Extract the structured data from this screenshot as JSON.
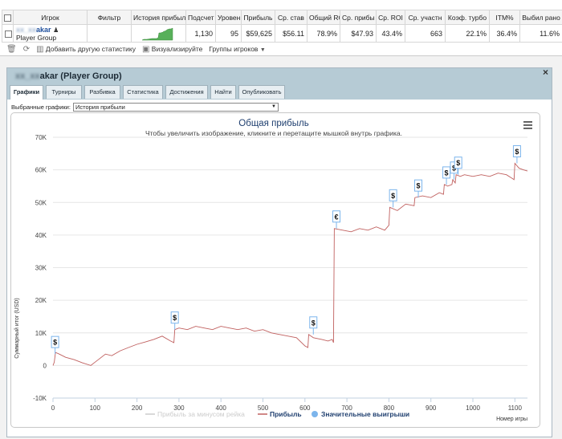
{
  "table": {
    "headers": [
      "Игрок",
      "Фильтр",
      "История прибыли",
      "Подсчет",
      "Уровен",
      "Прибыль",
      "Ср. став",
      "Общий ROI",
      "Ср. прибы",
      "Ср. ROI",
      "Ср. участн",
      "Коэф. турбо",
      "ITM%",
      "Выбил рано"
    ],
    "row": {
      "player_name_hidden": "xx_xx",
      "player_name": "akar",
      "player_group": "Player Group",
      "values": [
        "1,130",
        "95",
        "$59,625",
        "$56.11",
        "78.9%",
        "$47.93",
        "43.4%",
        "663",
        "22.1%",
        "36.4%",
        "11.6%"
      ]
    }
  },
  "toolbar": {
    "add_stats": "Добавить другую статистику",
    "visualize": "Визуализируйте",
    "player_groups": "Группы игроков"
  },
  "window": {
    "title_hidden": "xx_xx",
    "title": "akar (Player Group)",
    "close": "×",
    "tabs": [
      "Графики",
      "Турниры",
      "Разбивка",
      "Статистика",
      "Достижения",
      "Найти",
      "Опубликовать"
    ],
    "active_tab": 0,
    "select_label": "Выбранные графики:",
    "select_value": "История прибыли"
  },
  "chart_data": {
    "type": "line",
    "title": "Общая прибыль",
    "subtitle": "Чтобы увеличить изображение, кликните и перетащите мышкой внутрь графика.",
    "xlabel": "Номер игры",
    "ylabel": "Суммарный итог (USD)",
    "xlim": [
      0,
      1130
    ],
    "ylim": [
      -10000,
      70000
    ],
    "x_ticks": [
      0,
      100,
      200,
      300,
      400,
      500,
      600,
      700,
      800,
      900,
      1000,
      1100
    ],
    "y_ticks": [
      -10000,
      0,
      10000,
      20000,
      30000,
      40000,
      50000,
      60000,
      70000
    ],
    "y_tick_labels": [
      "-10K",
      "0",
      "10K",
      "20K",
      "30K",
      "40K",
      "50K",
      "60K",
      "70K"
    ],
    "grid": true,
    "legend_placement": "bottom",
    "legend": [
      "Прибыль за минусом рейка",
      "Прибыль",
      "Значительные выигрыши"
    ],
    "colors": {
      "profit": "#c0605f",
      "big_win": "#7cb5ec",
      "legend_disabled": "#cccccc",
      "title": "#1f3f6f"
    },
    "series": [
      {
        "name": "Прибыль",
        "x": [
          0,
          3,
          6,
          15,
          30,
          50,
          70,
          90,
          100,
          110,
          125,
          140,
          160,
          180,
          200,
          220,
          240,
          260,
          280,
          288,
          290,
          300,
          320,
          340,
          360,
          380,
          400,
          420,
          440,
          460,
          480,
          500,
          520,
          540,
          560,
          580,
          600,
          607,
          609,
          620,
          640,
          655,
          665,
          668,
          670,
          690,
          710,
          730,
          750,
          770,
          790,
          800,
          802,
          820,
          840,
          860,
          862,
          880,
          900,
          920,
          930,
          932,
          940,
          950,
          952,
          958,
          960,
          970,
          980,
          1000,
          1020,
          1040,
          1060,
          1080,
          1098,
          1100,
          1110,
          1120,
          1130
        ],
        "y": [
          0,
          1000,
          4000,
          3500,
          2500,
          1800,
          800,
          0,
          1000,
          2000,
          3500,
          3000,
          4500,
          5500,
          6500,
          7200,
          8000,
          9000,
          7500,
          7000,
          11000,
          11500,
          11000,
          12000,
          11500,
          11000,
          12000,
          11500,
          11000,
          11500,
          10500,
          11000,
          10000,
          9500,
          9000,
          8500,
          6000,
          5500,
          9500,
          8500,
          8000,
          7500,
          8000,
          7000,
          42000,
          41500,
          41000,
          42000,
          41500,
          42500,
          41500,
          43000,
          48500,
          47500,
          49500,
          49000,
          51500,
          52000,
          51500,
          53000,
          52500,
          55500,
          55000,
          55500,
          57000,
          56000,
          58500,
          58000,
          58500,
          58000,
          58500,
          58000,
          59000,
          58500,
          57000,
          62000,
          60500,
          60000,
          59625
        ]
      }
    ],
    "big_wins": [
      {
        "x": 5,
        "y": 3500,
        "marker": "$"
      },
      {
        "x": 290,
        "y": 11000,
        "marker": "$"
      },
      {
        "x": 620,
        "y": 9500,
        "marker": "$"
      },
      {
        "x": 675,
        "y": 42000,
        "marker": "€"
      },
      {
        "x": 810,
        "y": 48500,
        "marker": "$"
      },
      {
        "x": 870,
        "y": 51500,
        "marker": "$"
      },
      {
        "x": 937,
        "y": 55500,
        "marker": "$"
      },
      {
        "x": 955,
        "y": 57000,
        "marker": "$"
      },
      {
        "x": 965,
        "y": 58500,
        "marker": "$"
      },
      {
        "x": 1105,
        "y": 62000,
        "marker": "$"
      }
    ]
  }
}
